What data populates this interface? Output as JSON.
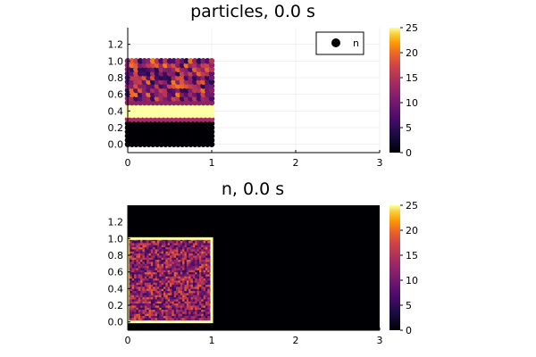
{
  "chart_data": [
    {
      "type": "scatter",
      "title": "particles, 0.0 s",
      "xlim": [
        0,
        3
      ],
      "ylim": [
        -0.1,
        1.4
      ],
      "x_ticks": [
        "0",
        "1",
        "2",
        "3"
      ],
      "y_ticks": [
        "0.0",
        "0.2",
        "0.4",
        "0.6",
        "0.8",
        "1.0",
        "1.2"
      ],
      "grid": true,
      "legend": {
        "label": "n",
        "placement": "top-right"
      },
      "colorbar": {
        "range": [
          0,
          25
        ],
        "ticks": [
          "0",
          "5",
          "10",
          "15",
          "20",
          "25"
        ]
      },
      "particles": {
        "x_range": [
          0,
          1
        ],
        "y_range": [
          0,
          1
        ],
        "grid_spacing": 0.05,
        "bands": [
          {
            "y_range": [
              0.0,
              0.27
            ],
            "value": 0
          },
          {
            "y_range": [
              0.3,
              0.34
            ],
            "value": 14
          },
          {
            "y_range": [
              0.35,
              0.45
            ],
            "value": 25
          },
          {
            "y_range": [
              0.46,
              0.5
            ],
            "value": 12
          },
          {
            "y_range": [
              0.5,
              1.0
            ],
            "value": "mixed 5-20"
          }
        ]
      }
    },
    {
      "type": "heatmap",
      "title": "n, 0.0 s",
      "xlim": [
        0,
        3
      ],
      "ylim": [
        -0.1,
        1.4
      ],
      "x_ticks": [
        "0",
        "1",
        "2",
        "3"
      ],
      "y_ticks": [
        "0.0",
        "0.2",
        "0.4",
        "0.6",
        "0.8",
        "1.0",
        "1.2"
      ],
      "colorbar": {
        "range": [
          0,
          25
        ],
        "ticks": [
          "0",
          "5",
          "10",
          "15",
          "20",
          "25"
        ]
      },
      "field": {
        "background_value": 0,
        "region_x": [
          0,
          1
        ],
        "region_y": [
          0,
          1
        ],
        "interior_value": "mixed 5-20",
        "boundary_value": 25
      }
    }
  ]
}
